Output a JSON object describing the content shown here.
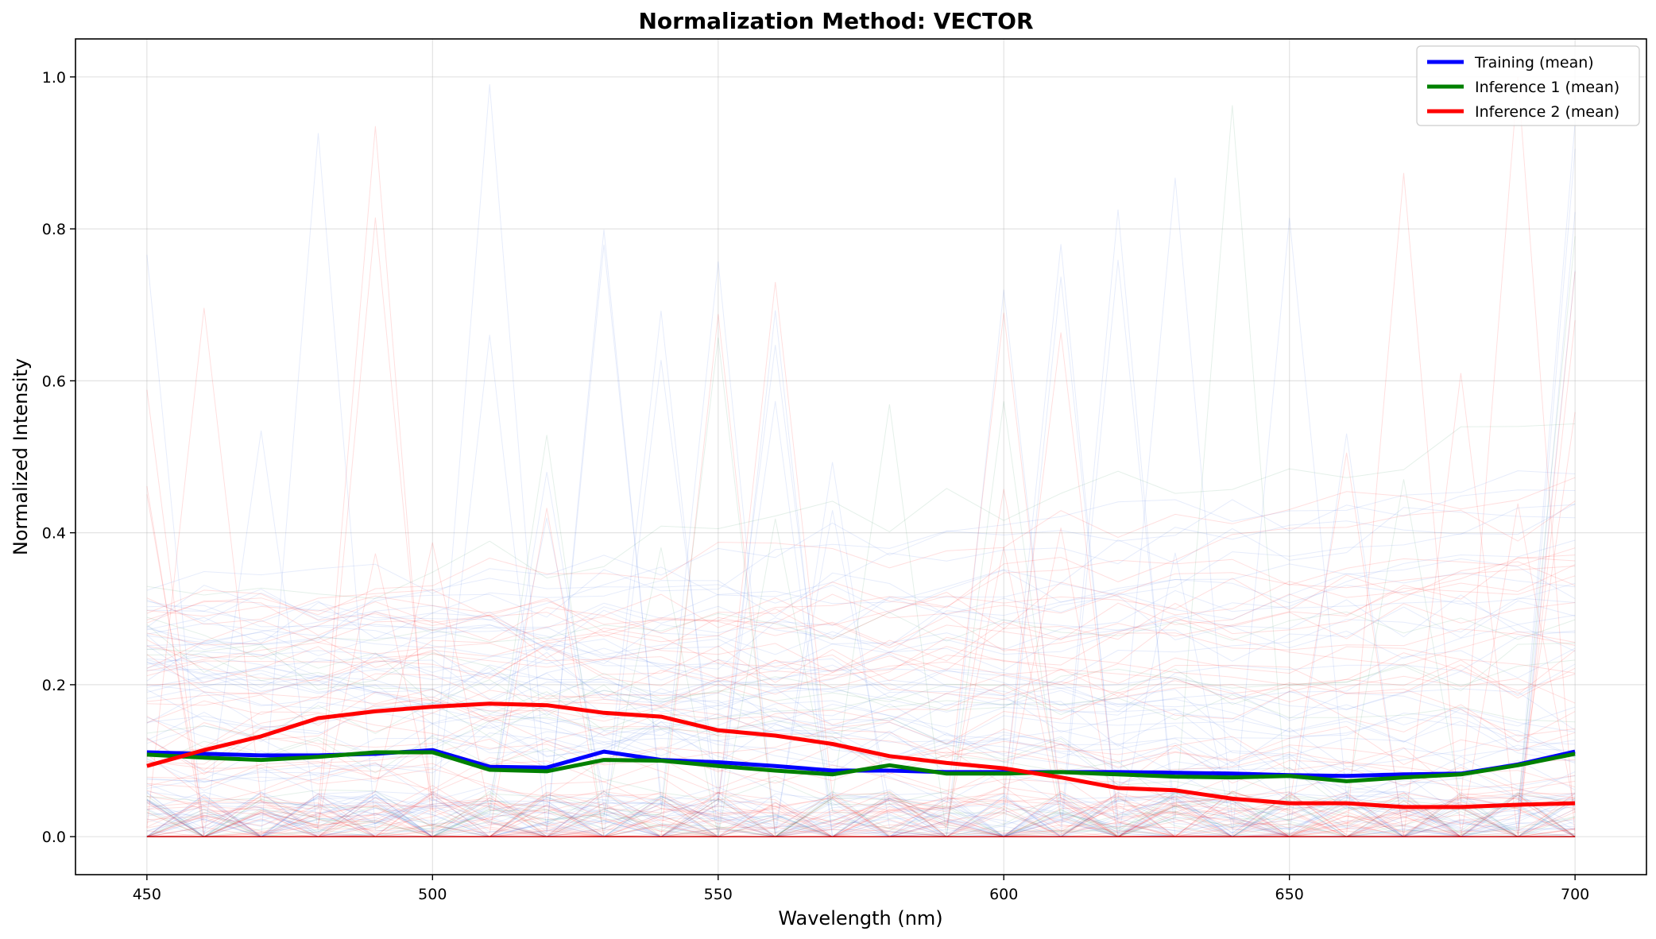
{
  "chart_data": {
    "type": "line",
    "title": "Normalization Method: VECTOR",
    "xlabel": "Wavelength (nm)",
    "ylabel": "Normalized Intensity",
    "xlim": [
      437.5,
      712.5
    ],
    "ylim": [
      -0.05,
      1.05
    ],
    "x_ticks": [
      450,
      500,
      550,
      600,
      650,
      700
    ],
    "y_ticks": [
      0.0,
      0.2,
      0.4,
      0.6,
      0.8,
      1.0
    ],
    "y_tick_labels": [
      "0.0",
      "0.2",
      "0.4",
      "0.6",
      "0.8",
      "1.0"
    ],
    "grid": true,
    "legend_position": "top-right",
    "x": [
      450,
      460,
      470,
      480,
      490,
      500,
      510,
      520,
      530,
      540,
      550,
      560,
      570,
      580,
      590,
      600,
      610,
      620,
      630,
      640,
      650,
      660,
      670,
      680,
      690,
      700
    ],
    "series": [
      {
        "name": "Training (mean)",
        "color": "#0000ff",
        "values": [
          0.111,
          0.109,
          0.107,
          0.107,
          0.109,
          0.114,
          0.092,
          0.091,
          0.112,
          0.101,
          0.098,
          0.093,
          0.087,
          0.087,
          0.085,
          0.085,
          0.085,
          0.085,
          0.084,
          0.083,
          0.081,
          0.08,
          0.082,
          0.083,
          0.095,
          0.112
        ]
      },
      {
        "name": "Inference 1 (mean)",
        "color": "#008000",
        "values": [
          0.108,
          0.104,
          0.101,
          0.105,
          0.111,
          0.111,
          0.088,
          0.086,
          0.101,
          0.1,
          0.093,
          0.087,
          0.082,
          0.094,
          0.083,
          0.083,
          0.085,
          0.082,
          0.079,
          0.078,
          0.08,
          0.073,
          0.078,
          0.082,
          0.094,
          0.109
        ]
      },
      {
        "name": "Inference 2 (mean)",
        "color": "#ff0000",
        "values": [
          0.093,
          0.114,
          0.132,
          0.156,
          0.165,
          0.171,
          0.175,
          0.173,
          0.163,
          0.158,
          0.14,
          0.133,
          0.122,
          0.106,
          0.097,
          0.09,
          0.078,
          0.064,
          0.061,
          0.05,
          0.044,
          0.044,
          0.039,
          0.039,
          0.042,
          0.044
        ]
      }
    ],
    "individual_spectra_colors": {
      "training": "#4169e1",
      "inference1": "#2e8b57",
      "inference2": "#ff0000"
    }
  }
}
